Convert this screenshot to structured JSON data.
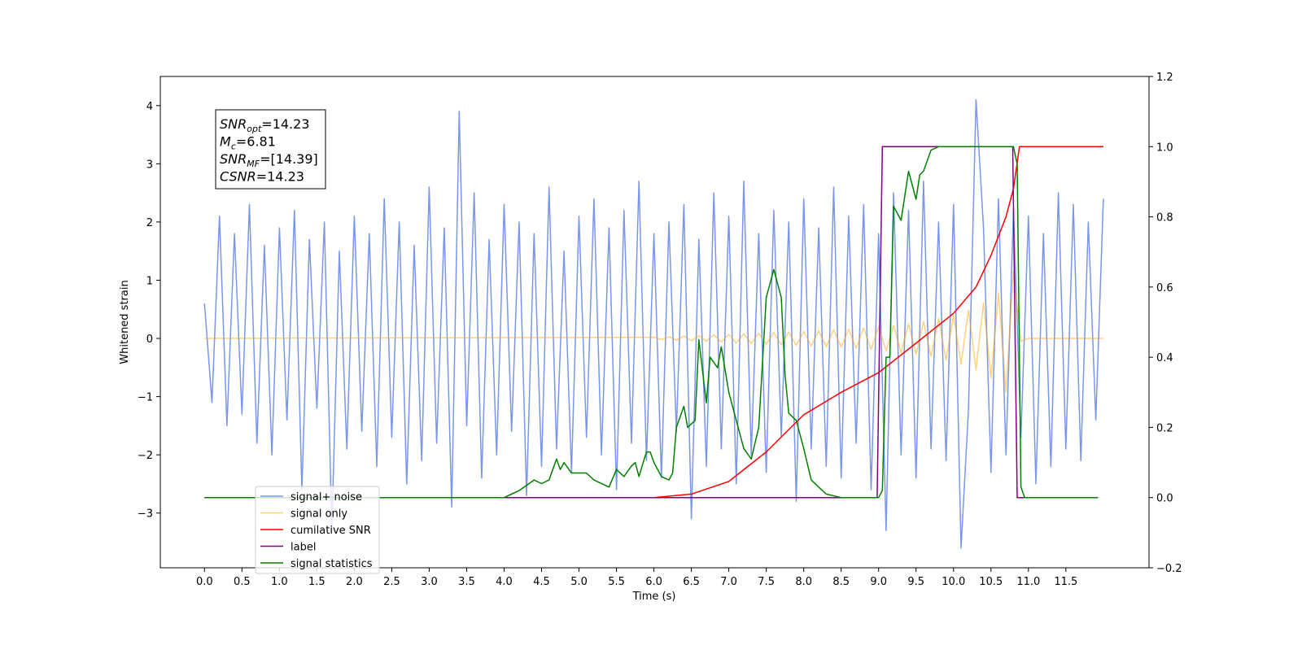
{
  "chart_data": {
    "type": "line",
    "xlabel": "Time (s)",
    "ylabel": "Whitened strain",
    "xlim": [
      -0.59,
      12.61
    ],
    "ylim": [
      -3.94,
      4.5
    ],
    "y2lim": [
      -0.2,
      1.2
    ],
    "xticks": [
      {
        "value": 0,
        "label": "0.0"
      },
      0.5,
      {
        "value": 1,
        "label": "1.0"
      },
      1.5,
      {
        "value": 2,
        "label": "2.0"
      },
      2.5,
      {
        "value": 3,
        "label": "3.0"
      },
      3.5,
      {
        "value": 4,
        "label": "4.0"
      },
      4.5,
      {
        "value": 5,
        "label": "5.0"
      },
      5.5,
      {
        "value": 6,
        "label": "6.0"
      },
      6.5,
      {
        "value": 7,
        "label": "7.0"
      },
      7.5,
      {
        "value": 8,
        "label": "8.0"
      },
      8.5,
      {
        "value": 9,
        "label": "9.0"
      },
      9.5,
      {
        "value": 10,
        "label": "10.0"
      },
      10.5,
      {
        "value": 11,
        "label": "11.0"
      },
      11.5
    ],
    "yticks": [
      {
        "value": -3,
        "label": "−3"
      },
      {
        "value": -2,
        "label": "−2"
      },
      {
        "value": -1,
        "label": "−1"
      },
      0,
      1,
      2,
      3,
      4
    ],
    "y2ticks": [
      {
        "value": -0.2,
        "label": "−0.2"
      },
      {
        "value": 0,
        "label": "0.0"
      },
      0.2,
      0.4,
      0.6,
      0.8,
      {
        "value": 1,
        "label": "1.0"
      },
      1.2
    ],
    "grid": false,
    "legend": "lower left",
    "annotation": [
      {
        "base": "SNR",
        "sub": "opt",
        "rest": "=14.23"
      },
      {
        "base": "M",
        "sub": "c",
        "rest": "=6.81"
      },
      {
        "base": "SNR",
        "sub": "MF",
        "rest": "=[14.39]"
      },
      {
        "base": "CSNR",
        "rest": "=14.23"
      }
    ],
    "series": [
      {
        "name": "signal+ noise",
        "color": "#4169e1",
        "alpha": 0.7,
        "x": [
          0,
          0.1,
          0.2,
          0.3,
          0.4,
          0.5,
          0.6,
          0.7,
          0.8,
          0.9,
          1,
          1.1,
          1.2,
          1.3,
          1.4,
          1.5,
          1.6,
          1.7,
          1.8,
          1.9,
          2,
          2.1,
          2.2,
          2.3,
          2.4,
          2.5,
          2.6,
          2.7,
          2.8,
          2.9,
          3,
          3.1,
          3.2,
          3.3,
          3.4,
          3.5,
          3.6,
          3.7,
          3.8,
          3.9,
          4,
          4.1,
          4.2,
          4.3,
          4.4,
          4.5,
          4.6,
          4.7,
          4.8,
          4.9,
          5,
          5.1,
          5.2,
          5.3,
          5.4,
          5.5,
          5.6,
          5.7,
          5.8,
          5.9,
          6,
          6.1,
          6.2,
          6.3,
          6.4,
          6.5,
          6.6,
          6.7,
          6.8,
          6.9,
          7,
          7.1,
          7.2,
          7.3,
          7.4,
          7.5,
          7.6,
          7.7,
          7.8,
          7.9,
          8,
          8.1,
          8.2,
          8.3,
          8.4,
          8.5,
          8.6,
          8.7,
          8.8,
          8.9,
          9,
          9.1,
          9.2,
          9.3,
          9.4,
          9.5,
          9.6,
          9.7,
          9.8,
          9.9,
          10,
          10.1,
          10.2,
          10.3,
          10.4,
          10.5,
          10.6,
          10.7,
          10.8,
          10.9,
          11,
          11.1,
          11.2,
          11.3,
          11.4,
          11.5,
          11.6,
          11.7,
          11.8,
          11.9,
          12
        ],
        "values": [
          0.6,
          -1.1,
          2.1,
          -1.5,
          1.8,
          -1.3,
          2.3,
          -1.8,
          1.6,
          -2.0,
          1.9,
          -1.4,
          2.2,
          -2.6,
          1.7,
          -1.2,
          2.0,
          -3.3,
          1.5,
          -1.9,
          2.1,
          -1.6,
          1.8,
          -2.2,
          2.4,
          -1.7,
          2.0,
          -2.5,
          1.6,
          -2.1,
          2.6,
          -1.8,
          1.9,
          -2.9,
          3.9,
          -1.5,
          2.5,
          -2.4,
          1.7,
          -2.0,
          2.3,
          -1.6,
          2.0,
          -2.7,
          1.8,
          -2.2,
          2.6,
          -1.9,
          1.5,
          -2.3,
          2.1,
          -1.7,
          2.4,
          -2.0,
          1.9,
          -2.6,
          2.2,
          -1.8,
          2.7,
          -2.1,
          1.8,
          -2.4,
          2.0,
          -1.6,
          2.3,
          -3.1,
          1.7,
          -2.2,
          2.5,
          -1.9,
          2.1,
          -2.5,
          2.7,
          -2.0,
          1.8,
          -2.3,
          2.2,
          -1.7,
          2.0,
          -2.8,
          2.4,
          -1.9,
          1.9,
          -2.2,
          2.6,
          -2.4,
          2.1,
          -1.8,
          2.3,
          -2.6,
          1.8,
          -3.3,
          2.5,
          -2.0,
          2.2,
          -2.4,
          2.7,
          -1.9,
          2.0,
          -2.1,
          2.3,
          -3.6,
          -1.2,
          4.1,
          1.9,
          -2.3,
          2.4,
          -2.0,
          2.2,
          -1.7,
          2.1,
          -2.5,
          1.8,
          -2.2,
          2.5,
          -1.9,
          2.3,
          -2.1,
          2.0,
          -1.4,
          2.4
        ]
      },
      {
        "name": "signal only",
        "color": "#ffa500",
        "alpha": 0.5,
        "x": [
          0,
          6,
          6.1,
          6.2,
          6.3,
          6.4,
          6.5,
          6.6,
          6.7,
          6.8,
          6.9,
          7,
          7.1,
          7.2,
          7.3,
          7.4,
          7.5,
          7.6,
          7.7,
          7.8,
          7.9,
          8,
          8.1,
          8.2,
          8.3,
          8.4,
          8.5,
          8.6,
          8.7,
          8.8,
          8.9,
          9,
          9.1,
          9.2,
          9.3,
          9.4,
          9.5,
          9.6,
          9.7,
          9.8,
          9.9,
          10,
          10.1,
          10.2,
          10.3,
          10.4,
          10.5,
          10.6,
          10.7,
          10.8,
          10.9,
          11,
          12
        ],
        "values": [
          0,
          0.02,
          -0.02,
          0.03,
          -0.03,
          0.04,
          -0.04,
          0.05,
          -0.05,
          0.06,
          -0.06,
          0.07,
          -0.08,
          0.08,
          -0.09,
          0.09,
          -0.1,
          0.1,
          -0.11,
          0.11,
          -0.12,
          0.12,
          -0.13,
          0.13,
          -0.14,
          0.15,
          -0.15,
          0.16,
          -0.17,
          0.18,
          -0.19,
          0.2,
          -0.21,
          0.22,
          -0.24,
          0.25,
          -0.27,
          0.29,
          -0.31,
          0.34,
          -0.37,
          0.4,
          -0.44,
          0.49,
          -0.54,
          0.61,
          -0.68,
          0.78,
          -0.92,
          1.15,
          -0.05,
          0,
          0
        ]
      },
      {
        "name": "cumilative SNR",
        "color": "#ff0000",
        "axis": "y2",
        "x": [
          0,
          6,
          6.5,
          7,
          7.5,
          8,
          8.5,
          9,
          9.5,
          10,
          10.3,
          10.5,
          10.7,
          10.8,
          10.88,
          12
        ],
        "values": [
          0,
          0,
          0.01,
          0.046,
          0.13,
          0.236,
          0.3,
          0.356,
          0.44,
          0.525,
          0.6,
          0.69,
          0.8,
          0.88,
          1,
          1
        ]
      },
      {
        "name": "label",
        "color": "#800080",
        "axis": "y2",
        "x": [
          0,
          8.98,
          9.05,
          10.79,
          10.85,
          11.93
        ],
        "values": [
          0,
          0,
          1,
          1,
          0,
          0
        ]
      },
      {
        "name": "signal statistics",
        "color": "#008000",
        "axis": "y2",
        "x": [
          0,
          4,
          4.2,
          4.4,
          4.5,
          4.6,
          4.7,
          4.75,
          4.8,
          4.9,
          5,
          5.1,
          5.2,
          5.4,
          5.5,
          5.6,
          5.7,
          5.75,
          5.8,
          5.9,
          5.95,
          6,
          6.1,
          6.2,
          6.25,
          6.3,
          6.4,
          6.45,
          6.55,
          6.6,
          6.7,
          6.75,
          6.85,
          6.9,
          7,
          7.1,
          7.2,
          7.3,
          7.4,
          7.5,
          7.6,
          7.7,
          7.75,
          7.8,
          7.9,
          8,
          8.1,
          8.2,
          8.3,
          8.5,
          9,
          9.05,
          9.1,
          9.15,
          9.2,
          9.3,
          9.4,
          9.5,
          9.55,
          9.6,
          9.7,
          9.8,
          10.8,
          10.85,
          10.9,
          10.95,
          11.93
        ],
        "values": [
          0,
          0,
          0.02,
          0.05,
          0.04,
          0.05,
          0.11,
          0.08,
          0.1,
          0.07,
          0.07,
          0.07,
          0.05,
          0.03,
          0.08,
          0.06,
          0.09,
          0.1,
          0.06,
          0.13,
          0.13,
          0.1,
          0.06,
          0.05,
          0.07,
          0.2,
          0.26,
          0.2,
          0.22,
          0.45,
          0.27,
          0.4,
          0.37,
          0.43,
          0.3,
          0.22,
          0.14,
          0.11,
          0.2,
          0.57,
          0.65,
          0.57,
          0.35,
          0.24,
          0.22,
          0.14,
          0.05,
          0.03,
          0.01,
          0,
          0,
          0.02,
          0.4,
          0.4,
          0.83,
          0.79,
          0.93,
          0.85,
          0.92,
          0.93,
          0.99,
          1,
          1,
          0.95,
          0.03,
          0,
          0
        ]
      }
    ]
  }
}
